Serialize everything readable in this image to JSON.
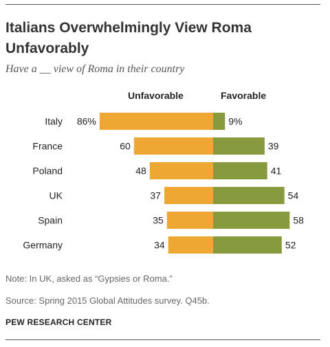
{
  "title": "Italians Overwhelmingly View Roma Unfavorably",
  "subtitle": "Have a __ view of Roma in their country",
  "note": "Note: In UK, asked as “Gypsies or Roma.”",
  "source": "Source: Spring 2015 Global Attitudes survey. Q45b.",
  "credit": "PEW RESEARCH CENTER",
  "colors": {
    "unfavorable": "#EDA732",
    "favorable": "#889A3E"
  },
  "chart_data": {
    "type": "bar",
    "categories": [
      "Italy",
      "France",
      "Poland",
      "UK",
      "Spain",
      "Germany"
    ],
    "series": [
      {
        "name": "Unfavorable",
        "values": [
          86,
          60,
          48,
          37,
          35,
          34
        ],
        "labels": [
          "86%",
          "60",
          "48",
          "37",
          "35",
          "34"
        ]
      },
      {
        "name": "Favorable",
        "values": [
          9,
          39,
          41,
          54,
          58,
          52
        ],
        "labels": [
          "9%",
          "39",
          "41",
          "54",
          "58",
          "52"
        ]
      }
    ],
    "legend": "top"
  }
}
